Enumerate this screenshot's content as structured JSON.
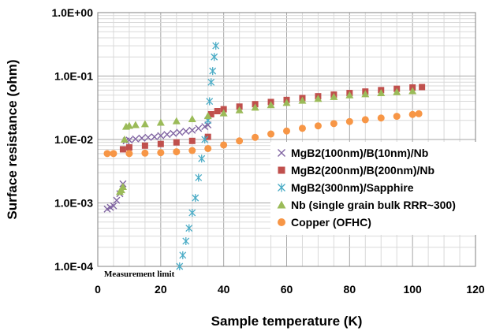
{
  "chart_data": {
    "type": "scatter",
    "title": "",
    "xlabel": "Sample temperature (K)",
    "ylabel": "Surface resistance (ohm)",
    "xlim": [
      0,
      120
    ],
    "ylim": [
      0.0001,
      1
    ],
    "yscale": "log",
    "grid": true,
    "x_ticks": [
      "0",
      "20",
      "40",
      "60",
      "80",
      "100",
      "120"
    ],
    "y_ticks": [
      "1.0E-04",
      "1.0E-03",
      "1.0E-02",
      "1.0E-01",
      "1.0E+00"
    ],
    "legend_position": "bottom-right",
    "annotations": [
      {
        "text": "Measurement limit",
        "x": 2,
        "y": 0.0001
      }
    ],
    "series": [
      {
        "name": "MgB2(100nm)/B(10nm)/Nb",
        "color": "#8064a2",
        "marker": "x",
        "x": [
          3,
          4,
          5,
          6,
          7,
          8,
          9,
          10,
          12,
          14,
          16,
          18,
          20,
          22,
          24,
          26,
          28,
          30,
          32,
          34,
          35
        ],
        "y": [
          0.0008,
          0.00085,
          0.0009,
          0.0011,
          0.0014,
          0.002,
          0.0095,
          0.0098,
          0.0102,
          0.0105,
          0.0108,
          0.011,
          0.0115,
          0.012,
          0.0125,
          0.013,
          0.0135,
          0.014,
          0.015,
          0.016,
          0.017
        ]
      },
      {
        "name": "MgB2(200nm)/B(200nm)/Nb",
        "color": "#c0504d",
        "marker": "square",
        "x": [
          8,
          10,
          15,
          20,
          25,
          30,
          35,
          36,
          38,
          40,
          45,
          50,
          55,
          60,
          65,
          70,
          75,
          80,
          85,
          90,
          95,
          100,
          103
        ],
        "y": [
          0.007,
          0.0075,
          0.008,
          0.0085,
          0.009,
          0.0095,
          0.011,
          0.025,
          0.028,
          0.03,
          0.033,
          0.036,
          0.039,
          0.042,
          0.045,
          0.048,
          0.051,
          0.054,
          0.057,
          0.06,
          0.063,
          0.066,
          0.067
        ]
      },
      {
        "name": "MgB2(300nm)/Sapphire",
        "color": "#4bacc6",
        "marker": "star",
        "x": [
          26,
          27,
          28,
          29,
          30,
          31,
          32,
          33,
          34,
          35,
          35.5,
          36,
          36.5,
          37,
          37.5
        ],
        "y": [
          0.0001,
          0.00015,
          0.00025,
          0.0004,
          0.0007,
          0.0012,
          0.0025,
          0.005,
          0.01,
          0.02,
          0.04,
          0.08,
          0.12,
          0.2,
          0.3
        ]
      },
      {
        "name": "Nb (single grain bulk RRR~300)",
        "color": "#9bbb59",
        "marker": "triangle",
        "x": [
          7,
          7.5,
          8,
          8.5,
          9,
          10,
          12,
          15,
          20,
          25,
          30,
          35,
          40,
          45,
          50,
          55,
          60,
          65,
          70,
          75,
          80,
          85,
          90,
          95,
          100
        ],
        "y": [
          0.0015,
          0.0016,
          0.0018,
          0.01,
          0.016,
          0.0165,
          0.017,
          0.0175,
          0.0185,
          0.0195,
          0.021,
          0.0235,
          0.026,
          0.029,
          0.032,
          0.035,
          0.038,
          0.041,
          0.044,
          0.047,
          0.05,
          0.052,
          0.054,
          0.056,
          0.058
        ]
      },
      {
        "name": "Copper (OFHC)",
        "color": "#f79646",
        "marker": "circle",
        "x": [
          3,
          5,
          10,
          15,
          20,
          25,
          30,
          35,
          40,
          45,
          50,
          55,
          60,
          65,
          70,
          75,
          80,
          85,
          90,
          95,
          100,
          102
        ],
        "y": [
          0.006,
          0.006,
          0.006,
          0.0061,
          0.0062,
          0.0064,
          0.0067,
          0.0072,
          0.0082,
          0.0095,
          0.0108,
          0.0122,
          0.0136,
          0.015,
          0.0164,
          0.0178,
          0.0192,
          0.0205,
          0.0218,
          0.0232,
          0.0248,
          0.0255
        ]
      }
    ]
  }
}
